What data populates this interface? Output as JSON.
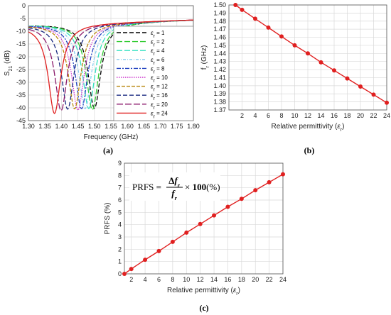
{
  "chart_data": [
    {
      "id": "a",
      "type": "line",
      "panel_label": "(a)",
      "xlabel": "Frequency (GHz)",
      "ylabel": "S21 (dB)",
      "xlim": [
        1.3,
        1.8
      ],
      "ylim": [
        -45,
        0
      ],
      "xticks": [
        "1.30",
        "1.35",
        "1.40",
        "1.45",
        "1.50",
        "1.55",
        "1.60",
        "1.65",
        "1.70",
        "1.75",
        "1.80"
      ],
      "yticks": [
        "0",
        "-5",
        "-10",
        "-15",
        "-20",
        "-25",
        "-30",
        "-35",
        "-40",
        "-45"
      ],
      "legend_position": "right",
      "series": [
        {
          "name": "εr = 1",
          "color": "#000000",
          "dash": "6,3",
          "f0": 1.5,
          "min": -39.0
        },
        {
          "name": "εr = 2",
          "color": "#33cc33",
          "dash": "8,3",
          "f0": 1.494,
          "min": -39.5
        },
        {
          "name": "εr = 4",
          "color": "#33e0c0",
          "dash": "8,3",
          "f0": 1.483,
          "min": -39.0
        },
        {
          "name": "εr = 6",
          "color": "#88ccee",
          "dash": "4,2,1,2",
          "f0": 1.472,
          "min": -39.0
        },
        {
          "name": "εr = 8",
          "color": "#1f3fbf",
          "dash": "6,2,2,2",
          "f0": 1.461,
          "min": -39.0
        },
        {
          "name": "εr = 10",
          "color": "#cc33cc",
          "dash": "1.5,1.5",
          "f0": 1.45,
          "min": -39.5
        },
        {
          "name": "εr = 12",
          "color": "#b8860b",
          "dash": "5,2",
          "f0": 1.44,
          "min": -39.0
        },
        {
          "name": "εr = 16",
          "color": "#1a2a80",
          "dash": "6,3",
          "f0": 1.419,
          "min": -39.0
        },
        {
          "name": "εr = 20",
          "color": "#8b1a6b",
          "dash": "9,3",
          "f0": 1.399,
          "min": -39.5
        },
        {
          "name": "εr = 24",
          "color": "#e02020",
          "dash": "",
          "f0": 1.379,
          "min": -40.5
        }
      ]
    },
    {
      "id": "b",
      "type": "line",
      "panel_label": "(b)",
      "xlabel": "Relative permittivity (εr)",
      "ylabel": "fr (GHz)",
      "xlim": [
        0,
        24
      ],
      "ylim": [
        1.37,
        1.5
      ],
      "xticks": [
        "2",
        "4",
        "6",
        "8",
        "10",
        "12",
        "14",
        "16",
        "18",
        "20",
        "22",
        "24"
      ],
      "yticks": [
        "1.50",
        "1.49",
        "1.48",
        "1.47",
        "1.46",
        "1.45",
        "1.44",
        "1.43",
        "1.42",
        "1.41",
        "1.40",
        "1.39",
        "1.38",
        "1.37"
      ],
      "color": "#e02020",
      "x": [
        1,
        2,
        4,
        6,
        8,
        10,
        12,
        14,
        16,
        18,
        20,
        22,
        24
      ],
      "y": [
        1.5,
        1.494,
        1.483,
        1.472,
        1.461,
        1.45,
        1.44,
        1.429,
        1.419,
        1.409,
        1.399,
        1.389,
        1.379
      ]
    },
    {
      "id": "c",
      "type": "line",
      "panel_label": "(c)",
      "xlabel": "Relative permittivity (εr)",
      "ylabel": "PRFS (%)",
      "xlim": [
        1,
        24
      ],
      "ylim": [
        0,
        9
      ],
      "xticks": [
        "2",
        "4",
        "6",
        "8",
        "10",
        "12",
        "14",
        "16",
        "18",
        "20",
        "22",
        "24"
      ],
      "yticks": [
        "9",
        "8",
        "7",
        "6",
        "5",
        "4",
        "3",
        "2",
        "1",
        "0"
      ],
      "annotation": "PRFS = Δfr / fr × 100(%)",
      "color": "#e02020",
      "x": [
        1,
        2,
        4,
        6,
        8,
        10,
        12,
        14,
        16,
        18,
        20,
        22,
        24
      ],
      "y": [
        0,
        0.4,
        1.15,
        1.85,
        2.6,
        3.35,
        4.05,
        4.75,
        5.45,
        6.1,
        6.8,
        7.45,
        8.1
      ]
    }
  ]
}
